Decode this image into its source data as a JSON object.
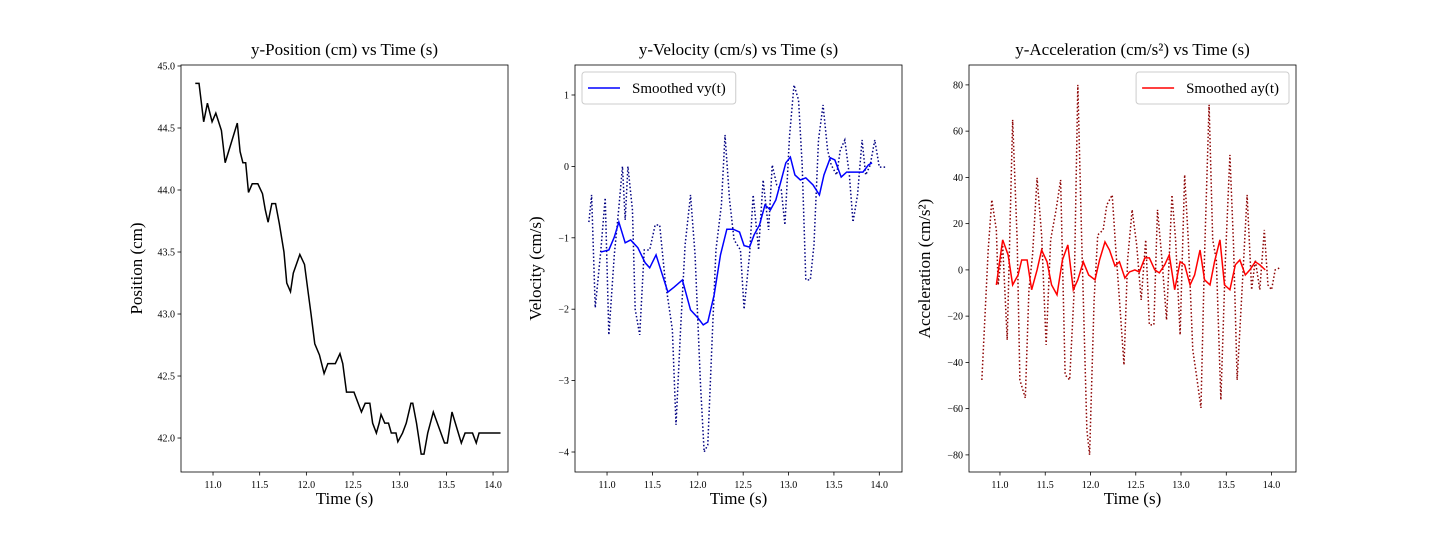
{
  "chart_data": [
    {
      "type": "line",
      "title": "y-Position (cm) vs Time (s)",
      "x_label": "Time (s)",
      "y_label": "Position (cm)",
      "xlim": [
        10.657,
        14.16
      ],
      "ylim": [
        41.726,
        45.008
      ],
      "xticks": [
        {
          "value": 11,
          "label": "11.0"
        },
        11.5,
        {
          "value": 12,
          "label": "12.0"
        },
        12.5,
        {
          "value": 13,
          "label": "13.0"
        },
        13.5,
        {
          "value": 14,
          "label": "14.0"
        }
      ],
      "yticks": [
        {
          "value": 42,
          "label": "42.0"
        },
        42.5,
        {
          "value": 43,
          "label": "43.0"
        },
        43.5,
        {
          "value": 44,
          "label": "44.0"
        },
        44.5,
        {
          "value": 45,
          "label": "45.0"
        }
      ],
      "series": [
        {
          "color": "#000000",
          "linestyle": "solid",
          "x": [
            10.81,
            10.85,
            10.9,
            10.94,
            10.99,
            11.03,
            11.09,
            11.13,
            11.26,
            11.29,
            11.32,
            11.35,
            11.38,
            11.42,
            11.48,
            11.53,
            11.56,
            11.59,
            11.63,
            11.67,
            11.71,
            11.76,
            11.79,
            11.83,
            11.86,
            11.93,
            11.98,
            12.02,
            12.05,
            12.09,
            12.14,
            12.19,
            12.23,
            12.31,
            12.36,
            12.39,
            12.43,
            12.51,
            12.59,
            12.63,
            12.68,
            12.71,
            12.75,
            12.78,
            12.8,
            12.84,
            12.88,
            12.91,
            12.96,
            12.98,
            13.03,
            13.07,
            13.12,
            13.14,
            13.18,
            13.23,
            13.26,
            13.3,
            13.36,
            13.48,
            13.51,
            13.56,
            13.66,
            13.7,
            13.78,
            13.82,
            13.85,
            14.08
          ],
          "values": [
            44.86,
            44.86,
            44.55,
            44.7,
            44.55,
            44.62,
            44.48,
            44.22,
            44.54,
            44.31,
            44.22,
            44.22,
            43.98,
            44.05,
            44.05,
            43.97,
            43.84,
            43.74,
            43.89,
            43.89,
            43.73,
            43.5,
            43.25,
            43.18,
            43.33,
            43.48,
            43.4,
            43.17,
            43.0,
            42.76,
            42.67,
            42.52,
            42.6,
            42.6,
            42.68,
            42.6,
            42.37,
            42.37,
            42.21,
            42.28,
            42.28,
            42.12,
            42.04,
            42.12,
            42.19,
            42.12,
            42.12,
            42.04,
            42.04,
            41.97,
            42.04,
            42.12,
            42.28,
            42.28,
            42.12,
            41.87,
            41.87,
            42.04,
            42.21,
            41.96,
            41.96,
            42.21,
            41.96,
            42.04,
            42.04,
            41.96,
            42.04,
            42.04
          ]
        }
      ]
    },
    {
      "type": "line",
      "title": "y-Velocity (cm/s) vs Time (s)",
      "x_label": "Time (s)",
      "y_label": "Velocity (cm/s)",
      "xlim": [
        10.647,
        14.25
      ],
      "ylim": [
        -4.28,
        1.42
      ],
      "legend": "upper left",
      "xticks": [
        {
          "value": 11,
          "label": "11.0"
        },
        11.5,
        {
          "value": 12,
          "label": "12.0"
        },
        12.5,
        {
          "value": 13,
          "label": "13.0"
        },
        13.5,
        {
          "value": 14,
          "label": "14.0"
        }
      ],
      "yticks": [
        {
          "value": -4,
          "label": "−4"
        },
        {
          "value": -3,
          "label": "−3"
        },
        {
          "value": -2,
          "label": "−2"
        },
        {
          "value": -1,
          "label": "−1"
        },
        0,
        1
      ],
      "series": [
        {
          "color": "#000080",
          "linestyle": "dotted",
          "x": [
            10.8,
            10.83,
            10.87,
            10.93,
            10.98,
            11.02,
            11.08,
            11.13,
            11.17,
            11.2,
            11.23,
            11.28,
            11.31,
            11.36,
            11.41,
            11.47,
            11.53,
            11.58,
            11.64,
            11.72,
            11.76,
            11.81,
            11.86,
            11.92,
            11.97,
            12.03,
            12.07,
            12.11,
            12.16,
            12.2,
            12.26,
            12.3,
            12.35,
            12.4,
            12.47,
            12.51,
            12.57,
            12.61,
            12.67,
            12.72,
            12.78,
            12.82,
            12.87,
            12.92,
            12.96,
            13.01,
            13.06,
            13.11,
            13.15,
            13.19,
            13.24,
            13.28,
            13.33,
            13.38,
            13.43,
            13.47,
            13.53,
            13.57,
            13.62,
            13.67,
            13.71,
            13.76,
            13.81,
            13.85,
            13.9,
            13.95,
            14.0,
            14.07
          ],
          "values": [
            -0.78,
            -0.4,
            -1.98,
            -1.2,
            -0.44,
            -2.36,
            -1.24,
            -0.58,
            0,
            -0.75,
            0,
            -0.61,
            -2.0,
            -2.36,
            -1.17,
            -1.17,
            -0.82,
            -0.82,
            -1.59,
            -2.29,
            -3.62,
            -2.29,
            -1.1,
            -0.4,
            -1.24,
            -3.06,
            -4.0,
            -3.9,
            -2.36,
            -1.17,
            -0.54,
            0.44,
            -0.47,
            -1.03,
            -1.17,
            -2.0,
            -1.24,
            -0.4,
            -1.17,
            -0.19,
            -0.89,
            0.02,
            -0.26,
            -0.33,
            -0.82,
            0.41,
            1.14,
            0.93,
            0.02,
            -1.59,
            -1.59,
            -1.1,
            0.37,
            0.86,
            0.23,
            0.02,
            -0.12,
            0.23,
            0.37,
            -0.12,
            -0.78,
            -0.4,
            0.37,
            -0.12,
            0.02,
            0.37,
            -0.01,
            -0.01
          ]
        },
        {
          "name": "Smoothed vy(t)",
          "color": "#0000ff",
          "linestyle": "solid",
          "x": [
            10.93,
            11.02,
            11.08,
            11.13,
            11.2,
            11.26,
            11.34,
            11.42,
            11.47,
            11.54,
            11.61,
            11.67,
            11.74,
            11.83,
            11.92,
            12.0,
            12.06,
            12.11,
            12.18,
            12.25,
            12.32,
            12.39,
            12.46,
            12.51,
            12.57,
            12.62,
            12.68,
            12.74,
            12.8,
            12.86,
            12.92,
            12.97,
            13.02,
            13.07,
            13.13,
            13.19,
            13.27,
            13.34,
            13.39,
            13.46,
            13.51,
            13.58,
            13.64,
            13.7,
            13.77,
            13.82,
            13.88,
            13.92
          ],
          "values": [
            -1.2,
            -1.17,
            -0.99,
            -0.78,
            -1.07,
            -1.03,
            -1.14,
            -1.35,
            -1.42,
            -1.24,
            -1.52,
            -1.76,
            -1.69,
            -1.59,
            -2.01,
            -2.12,
            -2.22,
            -2.18,
            -1.8,
            -1.24,
            -0.88,
            -0.88,
            -0.92,
            -1.11,
            -1.13,
            -0.96,
            -0.82,
            -0.54,
            -0.61,
            -0.47,
            -0.19,
            0.05,
            0.13,
            -0.12,
            -0.19,
            -0.16,
            -0.26,
            -0.4,
            -0.12,
            0.12,
            0.09,
            -0.15,
            -0.08,
            -0.08,
            -0.08,
            -0.08,
            0.02,
            0.05
          ]
        }
      ]
    },
    {
      "type": "line",
      "title": "y-Acceleration (cm/s²) vs Time (s)",
      "x_label": "Time (s)",
      "y_label": "Acceleration (cm/s²)",
      "xlim": [
        10.658,
        14.27
      ],
      "ylim": [
        -87.4,
        88.6
      ],
      "legend": "upper right",
      "xticks": [
        {
          "value": 11,
          "label": "11.0"
        },
        11.5,
        {
          "value": 12,
          "label": "12.0"
        },
        12.5,
        {
          "value": 13,
          "label": "13.0"
        },
        13.5,
        {
          "value": 14,
          "label": "14.0"
        }
      ],
      "yticks": [
        {
          "value": -80,
          "label": "−80"
        },
        {
          "value": -60,
          "label": "−60"
        },
        {
          "value": -40,
          "label": "−40"
        },
        {
          "value": -20,
          "label": "−20"
        },
        0,
        20,
        40,
        60,
        80
      ],
      "series": [
        {
          "color": "#8b0000",
          "linestyle": "dotted",
          "x": [
            10.8,
            10.87,
            10.91,
            10.96,
            10.98,
            11.03,
            11.08,
            11.14,
            11.19,
            11.22,
            11.28,
            11.32,
            11.36,
            11.41,
            11.46,
            11.51,
            11.56,
            11.62,
            11.67,
            11.72,
            11.77,
            11.82,
            11.86,
            11.9,
            11.96,
            11.99,
            12.04,
            12.08,
            12.14,
            12.18,
            12.24,
            12.28,
            12.32,
            12.37,
            12.41,
            12.46,
            12.51,
            12.56,
            12.61,
            12.65,
            12.7,
            12.74,
            12.79,
            12.84,
            12.9,
            12.94,
            12.99,
            13.04,
            13.08,
            13.13,
            13.17,
            13.22,
            13.26,
            13.31,
            13.35,
            13.39,
            13.44,
            13.49,
            13.54,
            13.58,
            13.62,
            13.68,
            13.73,
            13.78,
            13.82,
            13.87,
            13.92,
            13.96,
            14.0,
            14.04,
            14.09
          ],
          "values": [
            -47.6,
            8.6,
            30.3,
            17.3,
            -6.5,
            10.8,
            -30.3,
            64.9,
            13.0,
            -47.6,
            -55.4,
            -8.6,
            6.5,
            39.8,
            15.1,
            -32.4,
            13.0,
            26.0,
            38.9,
            -45.4,
            -47.6,
            -8.6,
            80.0,
            17.3,
            -69.2,
            -80.0,
            -13.0,
            15.1,
            17.3,
            28.1,
            32.4,
            8.6,
            -13.0,
            -41.1,
            4.3,
            26.0,
            10.8,
            -13.0,
            13.0,
            -23.8,
            -23.8,
            26.0,
            4.3,
            -21.6,
            32.4,
            13.0,
            -28.1,
            41.1,
            13.0,
            -34.6,
            -45.4,
            -59.7,
            6.5,
            71.4,
            13.0,
            4.3,
            -56.2,
            4.3,
            49.7,
            10.8,
            -47.6,
            -4.3,
            32.4,
            -8.6,
            4.3,
            -8.6,
            17.3,
            -6.5,
            -8.6,
            0,
            0.9
          ]
        },
        {
          "name": "Smoothed ay(t)",
          "color": "#ff0000",
          "linestyle": "solid",
          "x": [
            10.96,
            11.03,
            11.09,
            11.14,
            11.2,
            11.24,
            11.3,
            11.35,
            11.41,
            11.46,
            11.52,
            11.57,
            11.63,
            11.69,
            11.75,
            11.81,
            11.86,
            11.92,
            11.98,
            12.05,
            12.1,
            12.16,
            12.21,
            12.27,
            12.32,
            12.38,
            12.43,
            12.49,
            12.54,
            12.6,
            12.65,
            12.71,
            12.76,
            12.82,
            12.87,
            12.93,
            12.99,
            13.04,
            13.1,
            13.15,
            13.21,
            13.26,
            13.32,
            13.37,
            13.43,
            13.48,
            13.54,
            13.6,
            13.65,
            13.71,
            13.76,
            13.82,
            13.87,
            13.93
          ],
          "values": [
            -6.5,
            13.0,
            6.5,
            -6.5,
            -2.2,
            4.3,
            4.3,
            -8.6,
            0,
            8.6,
            3.5,
            -6.5,
            -10.8,
            4.3,
            10.8,
            -8.6,
            -4.3,
            3.5,
            -2.2,
            -4.3,
            4.3,
            12.1,
            8.6,
            1.7,
            3.5,
            -3.5,
            -0.9,
            0,
            -0.9,
            5.2,
            5.2,
            0,
            -1.3,
            2.2,
            6.5,
            -8.6,
            3.5,
            2.2,
            -6.5,
            -2.2,
            8.6,
            -4.3,
            -6.5,
            3.5,
            13.0,
            -6.5,
            -8.6,
            2.2,
            4.3,
            -2.2,
            0,
            3.5,
            2.2,
            0
          ]
        }
      ]
    }
  ]
}
